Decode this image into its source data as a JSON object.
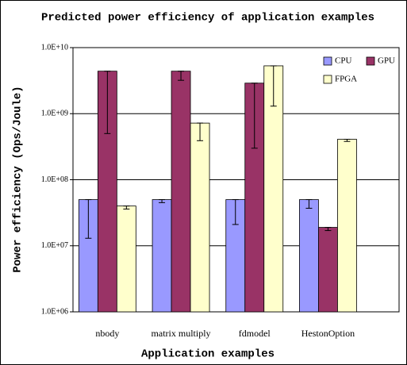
{
  "chart_data": {
    "type": "bar",
    "title": "Predicted power efficiency of application examples",
    "x_label": "Application examples",
    "y_label": "Power efficiency (Ops/Joule)",
    "categories": [
      "nbody",
      "matrix multiply",
      "fdmodel",
      "HestonOption"
    ],
    "series": [
      {
        "name": "CPU",
        "color": "#9999ff",
        "values": [
          50000000,
          50000000,
          50000000,
          50000000
        ],
        "errors": [
          37000000,
          5000000,
          29000000,
          13000000
        ]
      },
      {
        "name": "GPU",
        "color": "#993366",
        "values": [
          4400000000,
          4400000000,
          2900000000,
          19000000
        ],
        "errors": [
          3900000000,
          1200000000,
          2600000000,
          2000000
        ]
      },
      {
        "name": "FPGA",
        "color": "#ffffcc",
        "values": [
          40000000,
          720000000,
          5300000000,
          410000000
        ],
        "errors": [
          4000000,
          330000000,
          4000000000,
          30000000
        ]
      }
    ],
    "ylim": [
      1000000,
      10000000000
    ],
    "yticks": [
      {
        "value": 1000000,
        "label": "1.0E+06"
      },
      {
        "value": 10000000,
        "label": "1.0E+07"
      },
      {
        "value": 100000000,
        "label": "1.0E+08"
      },
      {
        "value": 1000000000,
        "label": "1.0E+09"
      },
      {
        "value": 10000000000,
        "label": "1.0E+10"
      }
    ],
    "log_scale": true,
    "grid": true,
    "legend": "top-right"
  }
}
